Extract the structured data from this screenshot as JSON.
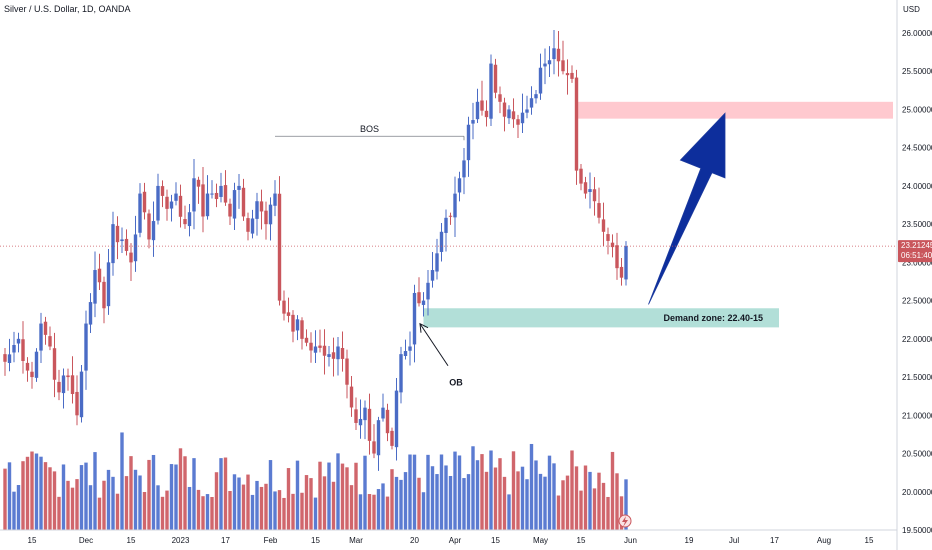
{
  "chart_data": {
    "type": "candlestick",
    "title": "Silver / U.S. Dollar, 1D, OANDA",
    "currency": "USD",
    "ylim": [
      19.5,
      26.3
    ],
    "y_ticks": [
      "26.00000",
      "25.50000",
      "25.00000",
      "24.50000",
      "24.00000",
      "23.50000",
      "23.00000",
      "22.50000",
      "22.00000",
      "21.50000",
      "21.00000",
      "20.50000",
      "20.00000",
      "19.50000"
    ],
    "y_tick_values": [
      26.0,
      25.5,
      25.0,
      24.5,
      24.0,
      23.5,
      23.0,
      22.5,
      22.0,
      21.5,
      21.0,
      20.5,
      20.0,
      19.5
    ],
    "x_ticks": [
      {
        "label": "15",
        "bar": 6
      },
      {
        "label": "Dec",
        "bar": 18
      },
      {
        "label": "15",
        "bar": 28
      },
      {
        "label": "2023",
        "bar": 39
      },
      {
        "label": "17",
        "bar": 49
      },
      {
        "label": "Feb",
        "bar": 59
      },
      {
        "label": "15",
        "bar": 69
      },
      {
        "label": "Mar",
        "bar": 78
      },
      {
        "label": "20",
        "bar": 91
      },
      {
        "label": "Apr",
        "bar": 100
      },
      {
        "label": "15",
        "bar": 109
      },
      {
        "label": "May",
        "bar": 119
      },
      {
        "label": "15",
        "bar": 128
      },
      {
        "label": "Jun",
        "bar": 139
      },
      {
        "label": "19",
        "bar": 152
      },
      {
        "label": "Jul",
        "bar": 162
      },
      {
        "label": "17",
        "bar": 171
      },
      {
        "label": "Aug",
        "bar": 182
      },
      {
        "label": "15",
        "bar": 192
      }
    ],
    "current_price": "23.21245",
    "countdown": "06:51:40",
    "last_close": 23.21245,
    "colors": {
      "up": "#4a6bc5",
      "down": "#c9565c",
      "volume_up": "#5b7bd1",
      "volume_down": "#d0666c",
      "arrow": "#0d2e9c",
      "supply": "#ffc9cf",
      "demand": "#b2dfd8",
      "price_line": "#c9565c"
    },
    "annotations": {
      "bos": {
        "label": "BOS",
        "price": 24.65,
        "from_bar": 60,
        "to_bar": 102
      },
      "supply_zone": {
        "price_top": 25.1,
        "price_bottom": 24.88,
        "from_bar": 127,
        "to_bar": 198
      },
      "demand_zone": {
        "label": "Demand zone: 22.40-15",
        "price_top": 22.4,
        "price_bottom": 22.15,
        "from_bar": 93,
        "to_bar": 172
      },
      "ob": {
        "label": "OB",
        "bar": 92,
        "price": 22.25
      },
      "arrow": {
        "from_bar": 143,
        "from_price": 22.45,
        "to_bar": 160,
        "to_price": 24.95
      }
    },
    "knots": [
      [
        0,
        21.7
      ],
      [
        3,
        22.0
      ],
      [
        6,
        21.5
      ],
      [
        8,
        22.2
      ],
      [
        10,
        21.9
      ],
      [
        12,
        21.3
      ],
      [
        14,
        21.5
      ],
      [
        16,
        21.0
      ],
      [
        18,
        22.2
      ],
      [
        20,
        22.9
      ],
      [
        22,
        22.4
      ],
      [
        24,
        23.5
      ],
      [
        26,
        23.3
      ],
      [
        28,
        23.0
      ],
      [
        30,
        23.9
      ],
      [
        32,
        23.3
      ],
      [
        34,
        24.0
      ],
      [
        36,
        23.7
      ],
      [
        38,
        23.9
      ],
      [
        40,
        23.5
      ],
      [
        42,
        24.1
      ],
      [
        44,
        23.6
      ],
      [
        46,
        23.9
      ],
      [
        48,
        24.0
      ],
      [
        50,
        23.6
      ],
      [
        52,
        24.0
      ],
      [
        54,
        23.4
      ],
      [
        56,
        23.8
      ],
      [
        58,
        23.5
      ],
      [
        60,
        23.9
      ],
      [
        61,
        22.5
      ],
      [
        63,
        22.3
      ],
      [
        66,
        22.0
      ],
      [
        69,
        21.9
      ],
      [
        72,
        21.8
      ],
      [
        74,
        21.9
      ],
      [
        76,
        21.4
      ],
      [
        78,
        20.9
      ],
      [
        80,
        21.1
      ],
      [
        82,
        20.5
      ],
      [
        84,
        21.1
      ],
      [
        86,
        20.6
      ],
      [
        88,
        21.8
      ],
      [
        90,
        21.9
      ],
      [
        91,
        22.6
      ],
      [
        93,
        22.5
      ],
      [
        95,
        22.9
      ],
      [
        97,
        23.4
      ],
      [
        99,
        23.6
      ],
      [
        101,
        24.1
      ],
      [
        103,
        24.8
      ],
      [
        105,
        25.1
      ],
      [
        107,
        24.9
      ],
      [
        108,
        25.6
      ],
      [
        110,
        25.1
      ],
      [
        112,
        25.0
      ],
      [
        114,
        24.8
      ],
      [
        116,
        25.0
      ],
      [
        118,
        25.2
      ],
      [
        120,
        25.6
      ],
      [
        122,
        25.8
      ],
      [
        124,
        25.5
      ],
      [
        126,
        25.4
      ],
      [
        127,
        24.2
      ],
      [
        129,
        23.9
      ],
      [
        131,
        23.8
      ],
      [
        133,
        23.4
      ],
      [
        135,
        23.2
      ],
      [
        137,
        22.8
      ],
      [
        138,
        23.21245
      ]
    ],
    "volume_scale": [
      0,
      1.0
    ]
  }
}
